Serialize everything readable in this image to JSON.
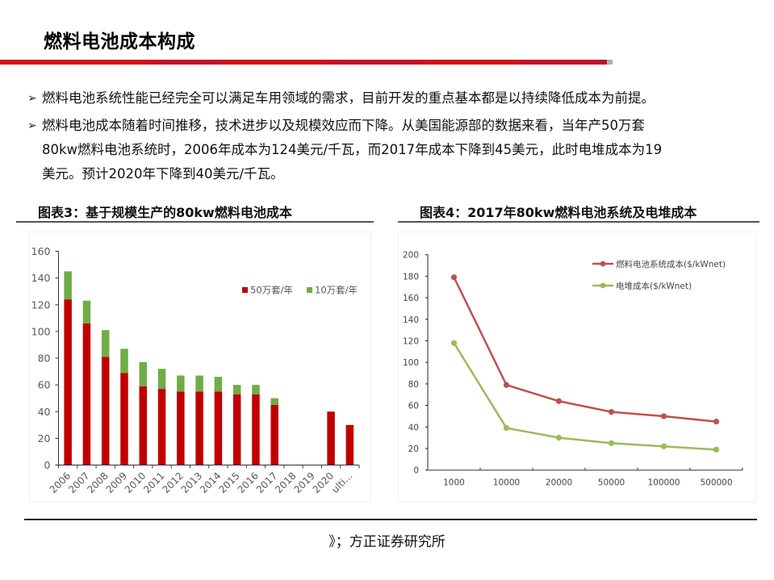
{
  "page": {
    "title": "燃料电池成本构成",
    "accent_color": "#d20f1e"
  },
  "bullets": [
    {
      "icon": "arrow-bullet-icon",
      "lines": [
        "燃料电池系统性能已经完全可以满足车用领域的需求，目前开发的重点基本都是以持续降低成本为前提。"
      ]
    },
    {
      "icon": "arrow-bullet-icon",
      "lines": [
        "燃料电池成本随着时间推移，技术进步以及规模效应而下降。从美国能源部的数据来看，当年产50万套",
        "80kw燃料电池系统时，2006年成本为124美元/千瓦，而2017年成本下降到45美元，此时电堆成本为19",
        "美元。预计2020年下降到40美元/千瓦。"
      ]
    }
  ],
  "charts": {
    "left_title": "图表3：基于规模生产的80kw燃料电池成本",
    "right_title": "图表4：2017年80kw燃料电池系统及电堆成本"
  },
  "chart_data": [
    {
      "type": "bar",
      "stacked": true,
      "title": "图表3：基于规模生产的80kw燃料电池成本",
      "xlabel": "",
      "ylabel": "",
      "ylim": [
        0,
        160
      ],
      "yticks": [
        0,
        20,
        40,
        60,
        80,
        100,
        120,
        140,
        160
      ],
      "categories": [
        "2006",
        "2007",
        "2008",
        "2009",
        "2010",
        "2011",
        "2012",
        "2013",
        "2014",
        "2015",
        "2016",
        "2017",
        "2018",
        "2019",
        "2020",
        "ulti..."
      ],
      "series": [
        {
          "name": "50万套/年",
          "color": "#c00000",
          "values": [
            124,
            106,
            81,
            69,
            59,
            57,
            55,
            55,
            55,
            53,
            53,
            45,
            0,
            0,
            40,
            30
          ]
        },
        {
          "name": "10万套/年",
          "color": "#70ad47",
          "values": [
            21,
            17,
            20,
            18,
            18,
            15,
            12,
            12,
            11,
            7,
            7,
            5,
            0,
            0,
            0,
            0
          ]
        }
      ],
      "totals": [
        145,
        123,
        101,
        87,
        77,
        72,
        67,
        67,
        66,
        60,
        60,
        50,
        0,
        0,
        40,
        30
      ],
      "legend": [
        "50万套/年",
        "10万套/年"
      ],
      "legend_position": "top-right",
      "grid": false
    },
    {
      "type": "line",
      "title": "图表4：2017年80kw燃料电池系统及电堆成本",
      "xlabel": "",
      "ylabel": "",
      "ylim": [
        0,
        200
      ],
      "yticks": [
        0,
        20,
        40,
        60,
        80,
        100,
        120,
        140,
        160,
        180,
        200
      ],
      "categories": [
        "1000",
        "10000",
        "20000",
        "50000",
        "100000",
        "500000"
      ],
      "series": [
        {
          "name": "燃料电池系统成本($/kWnet)",
          "color": "#c0504d",
          "values": [
            179,
            79,
            64,
            54,
            50,
            45
          ]
        },
        {
          "name": "电堆成本($/kWnet)",
          "color": "#9bbb59",
          "values": [
            118,
            39,
            30,
            25,
            22,
            19
          ]
        }
      ],
      "legend": [
        "燃料电池系统成本($/kWnet)",
        "电堆成本($/kWnet)"
      ],
      "legend_position": "top-right",
      "grid": false
    }
  ],
  "footer": {
    "source": "》；方正证券研究所"
  }
}
